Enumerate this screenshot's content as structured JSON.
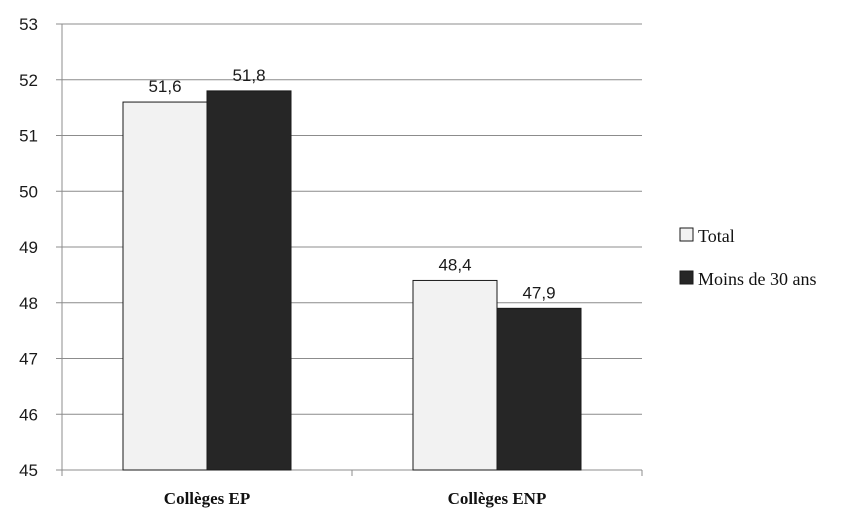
{
  "chart_data": {
    "type": "bar",
    "categories": [
      "Collèges EP",
      "Collèges ENP"
    ],
    "series": [
      {
        "name": "Total",
        "values": [
          51.6,
          48.4
        ],
        "labels": [
          "51,6",
          "48,4"
        ],
        "color": "#f2f2f2"
      },
      {
        "name": "Moins de 30 ans",
        "values": [
          51.8,
          47.9
        ],
        "labels": [
          "51,8",
          "47,9"
        ],
        "color": "#262626"
      }
    ],
    "ylim": [
      45,
      53
    ],
    "yticks": [
      45,
      46,
      47,
      48,
      49,
      50,
      51,
      52,
      53
    ],
    "grid": true,
    "legend_position": "right",
    "title": "",
    "xlabel": "",
    "ylabel": ""
  }
}
